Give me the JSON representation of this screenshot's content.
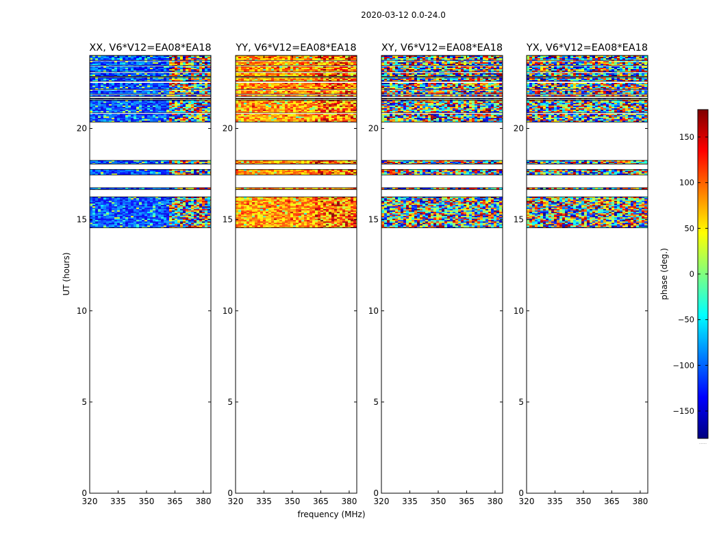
{
  "chart_data": {
    "type": "heatmap",
    "suptitle": "2020-03-12 0.0-24.0",
    "xlabel": "frequency (MHz)",
    "ylabel": "UT (hours)",
    "xlim": [
      320,
      384
    ],
    "ylim": [
      0,
      24
    ],
    "xticks": [
      320,
      335,
      350,
      365,
      380
    ],
    "yticks": [
      0,
      5,
      10,
      15,
      20
    ],
    "colorbar": {
      "label": "phase (deg.)",
      "range": [
        -180,
        180
      ],
      "ticks": [
        150,
        100,
        50,
        0,
        -50,
        -100,
        -150
      ],
      "tick_labels": [
        "150",
        "100",
        "50",
        "0",
        "−50",
        "−100",
        "−150"
      ],
      "colormap": "jet",
      "under_label": "....."
    },
    "colormap_stops": [
      "#00007f",
      "#0000ff",
      "#007fff",
      "#00ffff",
      "#7fff7f",
      "#ffff00",
      "#ff7f00",
      "#ff0000",
      "#7f0000"
    ],
    "data_bands_hours": [
      [
        20.35,
        21.55
      ],
      [
        21.6,
        21.65
      ],
      [
        21.75,
        22.8
      ],
      [
        22.85,
        24.0
      ],
      [
        18.05,
        18.25
      ],
      [
        17.45,
        17.75
      ],
      [
        16.65,
        16.75
      ],
      [
        14.55,
        16.25
      ]
    ],
    "gap_bands_hours": [
      [
        22.5,
        22.58
      ],
      [
        23.05,
        23.1
      ],
      [
        23.4,
        23.44
      ],
      [
        23.68,
        23.72
      ],
      [
        21.85,
        21.88
      ],
      [
        22.1,
        22.14
      ],
      [
        20.8,
        20.85
      ]
    ],
    "frequency_break_mhz": 361,
    "panels": [
      {
        "title": "XX, V6*V12=EA08*EA18",
        "mode": "xx"
      },
      {
        "title": "YY, V6*V12=EA08*EA18",
        "mode": "yy"
      },
      {
        "title": "XY, V6*V12=EA08*EA18",
        "mode": "noise"
      },
      {
        "title": "YX, V6*V12=EA08*EA18",
        "mode": "noise"
      }
    ]
  }
}
